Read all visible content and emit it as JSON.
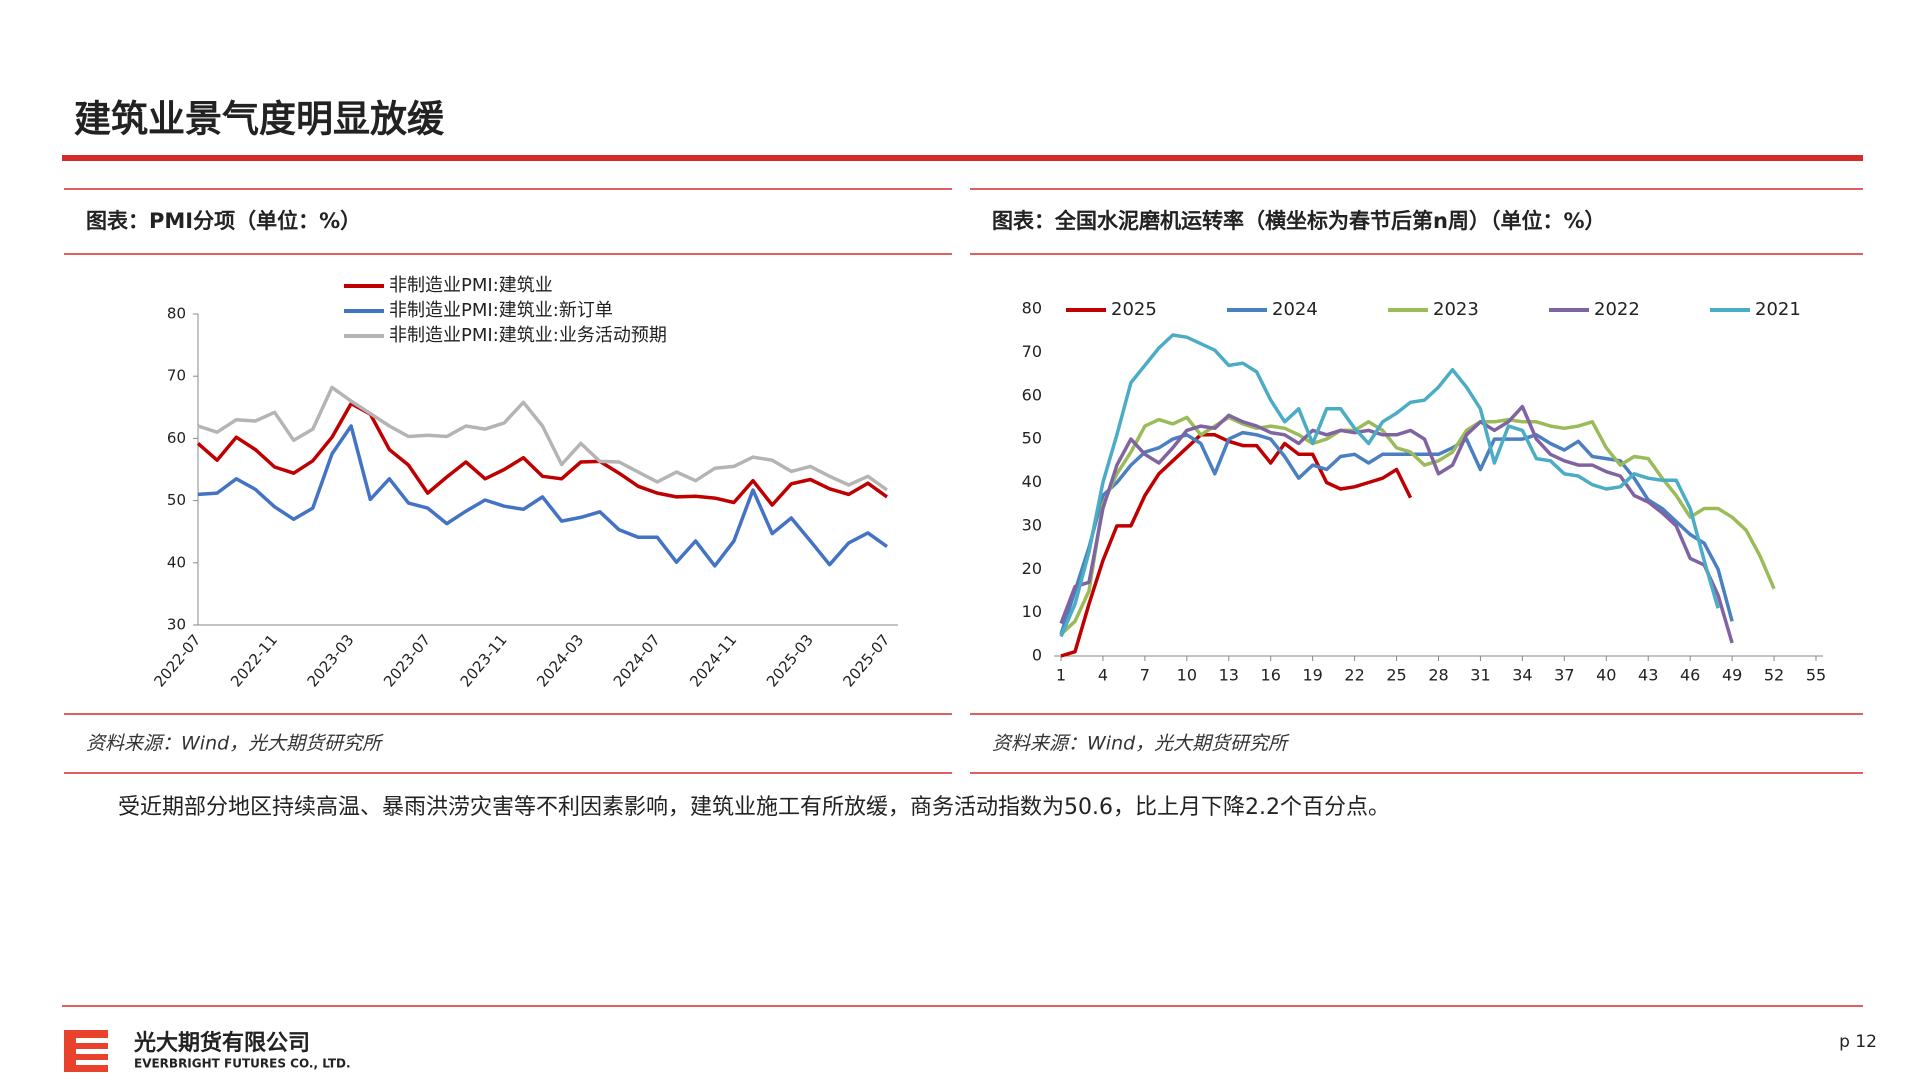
{
  "title": "建筑业景气度明显放缓",
  "chart_data": [
    {
      "type": "line",
      "title": "图表：PMI分项（单位：%）",
      "source": "资料来源：Wind，光大期货研究所",
      "categories": [
        "2022-07",
        null,
        null,
        null,
        "2022-11",
        null,
        null,
        null,
        "2023-03",
        null,
        null,
        null,
        "2023-07",
        null,
        null,
        null,
        "2023-11",
        null,
        null,
        null,
        "2024-03",
        null,
        null,
        null,
        "2024-07",
        null,
        null,
        null,
        "2024-11",
        null,
        null,
        null,
        "2025-03",
        null,
        null,
        null,
        "2025-07"
      ],
      "series": [
        {
          "name": "非制造业PMI:建筑业",
          "color": "#c00000",
          "values": [
            59.2,
            56.5,
            60.2,
            58.2,
            55.4,
            54.4,
            56.4,
            60.2,
            65.6,
            63.9,
            58.2,
            55.7,
            51.2,
            53.8,
            56.2,
            53.5,
            55.0,
            56.9,
            53.9,
            53.5,
            56.2,
            56.3,
            54.4,
            52.3,
            51.2,
            50.6,
            50.7,
            50.4,
            49.7,
            53.2,
            49.3,
            52.7,
            53.4,
            51.9,
            51.0,
            52.8,
            50.6
          ]
        },
        {
          "name": "非制造业PMI:建筑业:新订单",
          "color": "#4472c4",
          "values": [
            51.0,
            51.2,
            53.5,
            51.8,
            49.0,
            47.0,
            48.8,
            57.5,
            62.0,
            50.2,
            53.5,
            49.6,
            48.8,
            46.3,
            48.3,
            50.1,
            49.1,
            48.6,
            50.6,
            46.7,
            47.3,
            48.2,
            45.3,
            44.1,
            44.1,
            40.1,
            43.5,
            39.5,
            43.5,
            51.7,
            44.7,
            47.2,
            43.5,
            39.7,
            43.2,
            44.8,
            42.6
          ]
        },
        {
          "name": "非制造业PMI:建筑业:业务活动预期",
          "color": "#b4b4b4",
          "values": [
            62,
            61,
            63,
            62.8,
            64.2,
            59.7,
            61.5,
            68.2,
            66,
            64,
            62,
            60.3,
            60.5,
            60.3,
            62,
            61.5,
            62.5,
            65.8,
            62,
            55.8,
            59.2,
            56.3,
            56.2,
            54.6,
            53,
            54.6,
            53.2,
            55.2,
            55.5,
            57,
            56.5,
            54.7,
            55.5,
            53.9,
            52.5,
            53.9,
            51.7
          ]
        }
      ],
      "ylim": [
        30,
        80
      ],
      "yticks": [
        30,
        40,
        50,
        60,
        70,
        80
      ],
      "grid": false,
      "legend": "top"
    },
    {
      "type": "line",
      "title": "图表：全国水泥磨机运转率（横坐标为春节后第n周）（单位：%）",
      "source": "资料来源：Wind，光大期货研究所",
      "x": [
        1,
        2,
        3,
        4,
        5,
        6,
        7,
        8,
        9,
        10,
        11,
        12,
        13,
        14,
        15,
        16,
        17,
        18,
        19,
        20,
        21,
        22,
        23,
        24,
        25,
        26,
        27,
        28,
        29,
        30,
        31,
        32,
        33,
        34,
        35,
        36,
        37,
        38,
        39,
        40,
        41,
        42,
        43,
        44,
        45,
        46,
        47,
        48,
        49,
        50,
        51,
        52
      ],
      "series": [
        {
          "name": "2025",
          "color": "#c00000",
          "values": [
            0,
            1,
            12,
            22,
            30,
            30,
            37,
            42,
            45,
            48,
            51,
            51,
            49.5,
            48.5,
            48.5,
            44.5,
            49,
            46.5,
            46.5,
            40,
            38.5,
            39,
            40,
            41,
            43,
            36.5,
            null,
            null,
            null,
            null,
            null,
            null,
            null,
            null,
            null,
            null,
            null,
            null,
            null,
            null,
            null,
            null,
            null,
            null,
            null,
            null,
            null,
            null,
            null,
            null,
            null,
            null
          ]
        },
        {
          "name": "2024",
          "color": "#4a7fc1",
          "values": [
            5,
            15,
            25,
            37,
            40,
            44,
            47,
            48,
            50,
            51,
            49,
            42,
            50,
            51.5,
            51,
            50,
            46,
            41,
            44,
            43,
            46,
            46.5,
            44.5,
            46.5,
            46.5,
            46.5,
            46.5,
            46.5,
            48,
            50,
            43,
            50,
            50,
            50,
            51,
            49,
            47.5,
            49.5,
            46,
            45.5,
            45,
            41,
            36,
            34,
            31,
            28,
            26,
            20,
            8,
            null,
            null,
            null
          ]
        },
        {
          "name": "2023",
          "color": "#9bbb59",
          "values": [
            5,
            8,
            15,
            35,
            42,
            47,
            53,
            54.5,
            53.5,
            55,
            51,
            53,
            55,
            53.5,
            52.5,
            53,
            52.5,
            51,
            49,
            50,
            52,
            52,
            54,
            52,
            48,
            47,
            44,
            45,
            47,
            52,
            54,
            54,
            54.5,
            54,
            54,
            53,
            52.5,
            53,
            54,
            48,
            44,
            46,
            45.5,
            41,
            37,
            32,
            34,
            34,
            32,
            29,
            23,
            15.5
          ]
        },
        {
          "name": "2022",
          "color": "#8064a2",
          "values": [
            7.5,
            16,
            17,
            34,
            44,
            50,
            46.5,
            44.5,
            48,
            52,
            53,
            52.5,
            55.5,
            54,
            53,
            51.5,
            51,
            49,
            52,
            51,
            52,
            51.5,
            52,
            51,
            51,
            52,
            50,
            42,
            44,
            51,
            54,
            52,
            54,
            57.5,
            50,
            46.5,
            45,
            44,
            44,
            42.5,
            41.5,
            37,
            35.5,
            33,
            30,
            22.5,
            21,
            14,
            3,
            null,
            null,
            null
          ]
        },
        {
          "name": "2021",
          "color": "#4bacc6",
          "values": [
            4.5,
            12,
            24,
            40,
            51,
            63,
            67,
            71,
            74,
            73.5,
            72,
            70.5,
            67,
            67.5,
            65.5,
            59,
            54,
            57,
            49,
            57,
            57,
            52.5,
            49,
            54,
            56,
            58.5,
            59,
            62,
            66,
            62,
            57,
            44.5,
            53,
            52,
            45.5,
            45,
            42,
            41.5,
            39.5,
            38.5,
            39,
            42,
            41,
            40.5,
            40.5,
            34,
            22,
            11,
            null,
            null,
            null,
            null
          ]
        }
      ],
      "xlim": [
        0.5,
        55.5
      ],
      "xticks": [
        1,
        4,
        7,
        10,
        13,
        16,
        19,
        22,
        25,
        28,
        31,
        34,
        37,
        40,
        43,
        46,
        49,
        52,
        55
      ],
      "ylim": [
        0,
        80
      ],
      "yticks": [
        0,
        10,
        20,
        30,
        40,
        50,
        60,
        70,
        80
      ],
      "grid": false,
      "legend": "top"
    }
  ],
  "body_text": "受近期部分地区持续高温、暴雨洪涝灾害等不利因素影响，建筑业施工有所放缓，商务活动指数为50.6，比上月下降2.2个百分点。",
  "footer": {
    "company_cn": "光大期货有限公司",
    "company_en": "EVERBRIGHT FUTURES CO., LTD.",
    "page": "p 12"
  }
}
